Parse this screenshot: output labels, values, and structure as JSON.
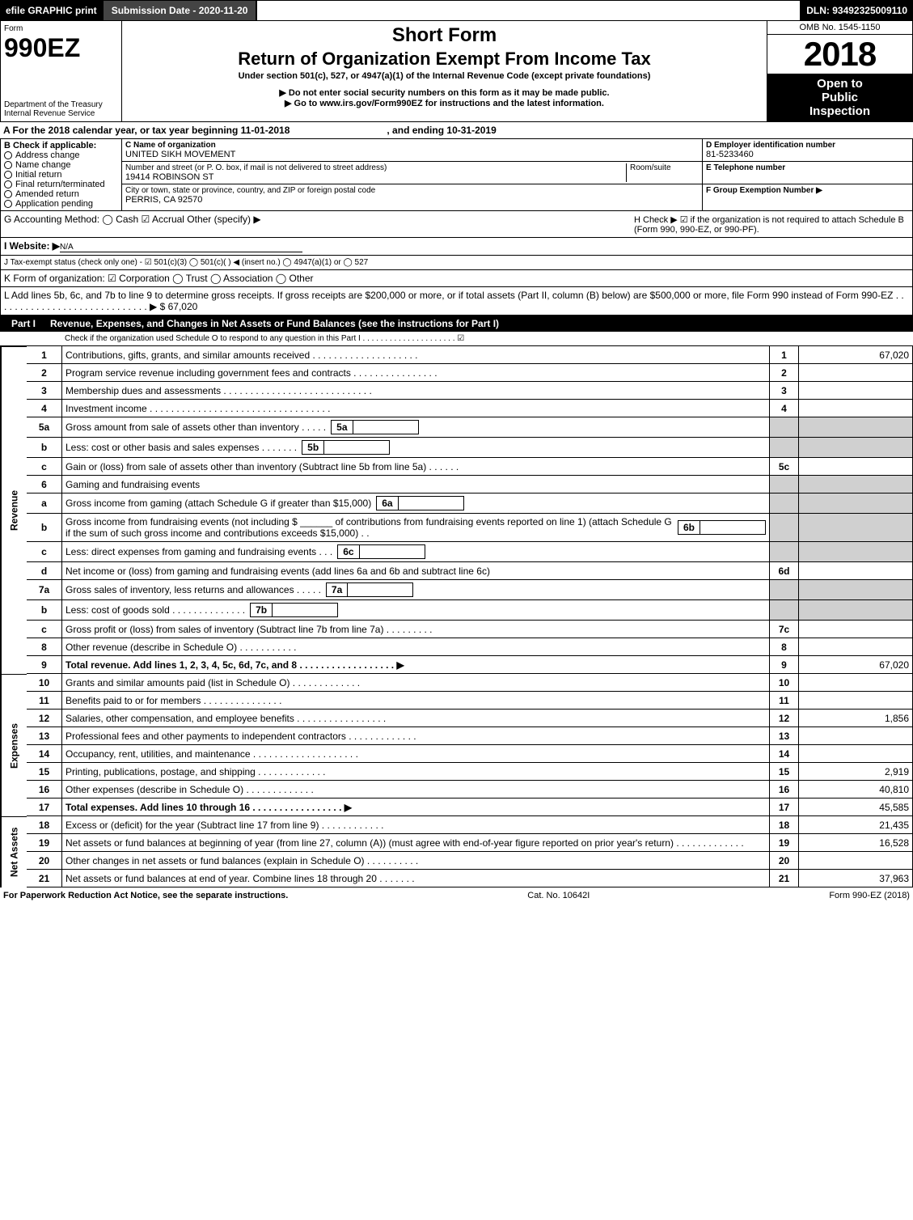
{
  "top": {
    "efile": "efile GRAPHIC print",
    "submission": "Submission Date - 2020-11-20",
    "dln": "DLN: 93492325009110"
  },
  "header": {
    "form_label": "Form",
    "form_number": "990EZ",
    "dept1": "Department of the Treasury",
    "dept2": "Internal Revenue Service",
    "short_form": "Short Form",
    "main_title": "Return of Organization Exempt From Income Tax",
    "subtitle1": "Under section 501(c), 527, or 4947(a)(1) of the Internal Revenue Code (except private foundations)",
    "warn": "▶ Do not enter social security numbers on this form as it may be made public.",
    "link": "▶ Go to www.irs.gov/Form990EZ for instructions and the latest information.",
    "omb": "OMB No. 1545-1150",
    "year": "2018",
    "open1": "Open to",
    "open2": "Public",
    "open3": "Inspection"
  },
  "a_line": {
    "text": "A  For the 2018 calendar year, or tax year beginning 11-01-2018",
    "ending": ", and ending 10-31-2019"
  },
  "b_section": {
    "header": "B  Check if applicable:",
    "options": [
      "Address change",
      "Name change",
      "Initial return",
      "Final return/terminated",
      "Amended return",
      "Application pending"
    ]
  },
  "c_section": {
    "name_label": "C Name of organization",
    "name": "UNITED SIKH MOVEMENT",
    "street_label": "Number and street (or P. O. box, if mail is not delivered to street address)",
    "street": "19414 ROBINSON ST",
    "room_label": "Room/suite",
    "city_label": "City or town, state or province, country, and ZIP or foreign postal code",
    "city": "PERRIS, CA  92570"
  },
  "d_section": {
    "ein_label": "D Employer identification number",
    "ein": "81-5233460",
    "tel_label": "E Telephone number",
    "group_label": "F Group Exemption Number  ▶"
  },
  "g_line": "G Accounting Method:   ◯ Cash   ☑ Accrual   Other (specify) ▶",
  "h_line": "H  Check ▶  ☑  if the organization is not required to attach Schedule B (Form 990, 990-EZ, or 990-PF).",
  "i_line_label": "I Website: ▶",
  "i_line_val": "N/A",
  "j_line": "J Tax-exempt status (check only one) -  ☑ 501(c)(3)  ◯  501(c)(  )  ◀ (insert no.)  ◯  4947(a)(1) or  ◯  527",
  "k_line": "K Form of organization:   ☑ Corporation   ◯ Trust   ◯ Association   ◯ Other",
  "l_line": "L Add lines 5b, 6c, and 7b to line 9 to determine gross receipts. If gross receipts are $200,000 or more, or if total assets (Part II, column (B) below) are $500,000 or more, file Form 990 instead of Form 990-EZ . . . . . . . . . . . . . . . . . . . . . . . . . . . . . ▶ $ 67,020",
  "part1": {
    "label": "Part I",
    "title": "Revenue, Expenses, and Changes in Net Assets or Fund Balances (see the instructions for Part I)",
    "check_line": "Check if the organization used Schedule O to respond to any question in this Part I . . . . . . . . . . . . . . . . . . . . .  ☑"
  },
  "sidebar": {
    "revenue": "Revenue",
    "expenses": "Expenses",
    "netassets": "Net Assets"
  },
  "rows": [
    {
      "n": "1",
      "d": "Contributions, gifts, grants, and similar amounts received . . . . . . . . . . . . . . . . . . . .",
      "ln": "1",
      "amt": "67,020"
    },
    {
      "n": "2",
      "d": "Program service revenue including government fees and contracts . . . . . . . . . . . . . . . .",
      "ln": "2",
      "amt": ""
    },
    {
      "n": "3",
      "d": "Membership dues and assessments . . . . . . . . . . . . . . . . . . . . . . . . . . . .",
      "ln": "3",
      "amt": ""
    },
    {
      "n": "4",
      "d": "Investment income . . . . . . . . . . . . . . . . . . . . . . . . . . . . . . . . . .",
      "ln": "4",
      "amt": ""
    },
    {
      "n": "5a",
      "d": "Gross amount from sale of assets other than inventory . . . . .",
      "sub": "5a",
      "grey": true
    },
    {
      "n": "b",
      "d": "Less: cost or other basis and sales expenses . . . . . . .",
      "sub": "5b",
      "grey": true
    },
    {
      "n": "c",
      "d": "Gain or (loss) from sale of assets other than inventory (Subtract line 5b from line 5a) . . . . . .",
      "ln": "5c",
      "amt": ""
    },
    {
      "n": "6",
      "d": "Gaming and fundraising events",
      "grey": true
    },
    {
      "n": "a",
      "d": "Gross income from gaming (attach Schedule G if greater than $15,000)",
      "sub": "6a",
      "grey": true
    },
    {
      "n": "b",
      "d": "Gross income from fundraising events (not including $ ______ of contributions from fundraising events reported on line 1) (attach Schedule G if the sum of such gross income and contributions exceeds $15,000)   . .",
      "sub": "6b",
      "grey": true
    },
    {
      "n": "c",
      "d": "Less: direct expenses from gaming and fundraising events    . . .",
      "sub": "6c",
      "grey": true
    },
    {
      "n": "d",
      "d": "Net income or (loss) from gaming and fundraising events (add lines 6a and 6b and subtract line 6c)",
      "ln": "6d",
      "amt": ""
    },
    {
      "n": "7a",
      "d": "Gross sales of inventory, less returns and allowances . . . . .",
      "sub": "7a",
      "grey": true
    },
    {
      "n": "b",
      "d": "Less: cost of goods sold        . . . . . . . . . . . . . .",
      "sub": "7b",
      "grey": true
    },
    {
      "n": "c",
      "d": "Gross profit or (loss) from sales of inventory (Subtract line 7b from line 7a) . . . . . . . . .",
      "ln": "7c",
      "amt": ""
    },
    {
      "n": "8",
      "d": "Other revenue (describe in Schedule O)               . . . . . . . . . . .",
      "ln": "8",
      "amt": ""
    },
    {
      "n": "9",
      "d": "Total revenue. Add lines 1, 2, 3, 4, 5c, 6d, 7c, and 8 . . . . . . . . . . . . . . . . . .  ▶",
      "ln": "9",
      "amt": "67,020",
      "bold": true
    },
    {
      "n": "10",
      "d": "Grants and similar amounts paid (list in Schedule O)        . . . . . . . . . . . . .",
      "ln": "10",
      "amt": "",
      "section": "expenses"
    },
    {
      "n": "11",
      "d": "Benefits paid to or for members             . . . . . . . . . . . . . . .",
      "ln": "11",
      "amt": "",
      "section": "expenses"
    },
    {
      "n": "12",
      "d": "Salaries, other compensation, and employee benefits . . . . . . . . . . . . . . . . .",
      "ln": "12",
      "amt": "1,856",
      "section": "expenses"
    },
    {
      "n": "13",
      "d": "Professional fees and other payments to independent contractors . . . . . . . . . . . . .",
      "ln": "13",
      "amt": "",
      "section": "expenses"
    },
    {
      "n": "14",
      "d": "Occupancy, rent, utilities, and maintenance . . . . . . . . . . . . . . . . . . . .",
      "ln": "14",
      "amt": "",
      "section": "expenses"
    },
    {
      "n": "15",
      "d": "Printing, publications, postage, and shipping          . . . . . . . . . . . . .",
      "ln": "15",
      "amt": "2,919",
      "section": "expenses"
    },
    {
      "n": "16",
      "d": "Other expenses (describe in Schedule O)           . . . . . . . . . . . . .",
      "ln": "16",
      "amt": "40,810",
      "section": "expenses"
    },
    {
      "n": "17",
      "d": "Total expenses. Add lines 10 through 16       . . . . . . . . . . . . . . . . .  ▶",
      "ln": "17",
      "amt": "45,585",
      "bold": true,
      "section": "expenses"
    },
    {
      "n": "18",
      "d": "Excess or (deficit) for the year (Subtract line 17 from line 9)     . . . . . . . . . . . .",
      "ln": "18",
      "amt": "21,435",
      "section": "netassets"
    },
    {
      "n": "19",
      "d": "Net assets or fund balances at beginning of year (from line 27, column (A)) (must agree with end-of-year figure reported on prior year's return)         . . . . . . . . . . . . .",
      "ln": "19",
      "amt": "16,528",
      "section": "netassets"
    },
    {
      "n": "20",
      "d": "Other changes in net assets or fund balances (explain in Schedule O)   . . . . . . . . . .",
      "ln": "20",
      "amt": "",
      "section": "netassets"
    },
    {
      "n": "21",
      "d": "Net assets or fund balances at end of year. Combine lines 18 through 20      . . . . . . .",
      "ln": "21",
      "amt": "37,963",
      "section": "netassets"
    }
  ],
  "footer": {
    "left": "For Paperwork Reduction Act Notice, see the separate instructions.",
    "mid": "Cat. No. 10642I",
    "right": "Form 990-EZ (2018)"
  },
  "colors": {
    "black": "#000000",
    "grey": "#d0d0d0",
    "darkgrey": "#444444"
  }
}
